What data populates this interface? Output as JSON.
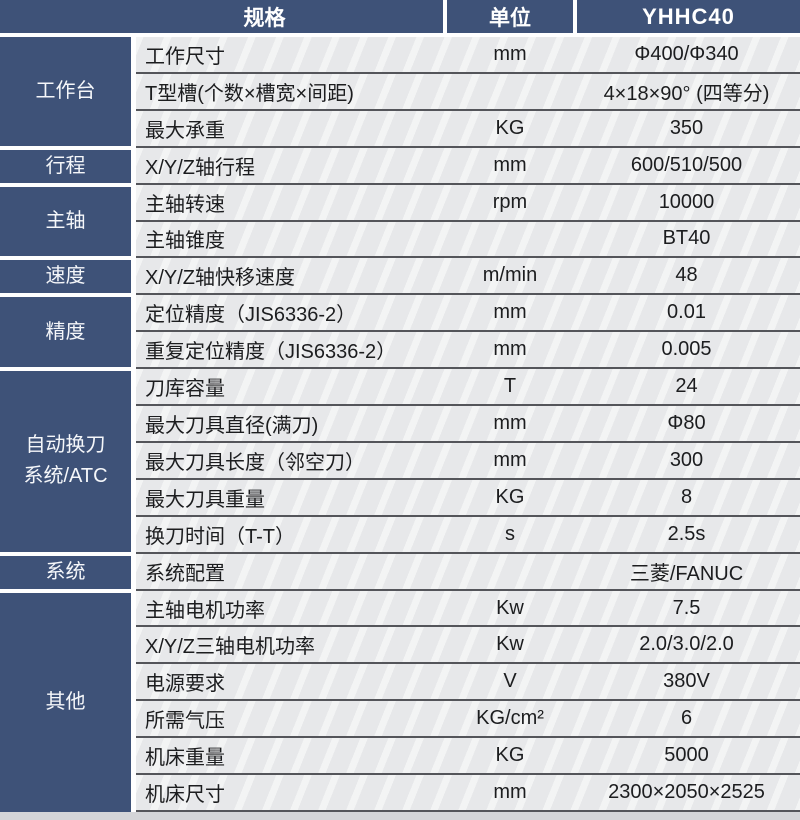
{
  "header": {
    "spec_label": "规格",
    "unit_label": "单位",
    "model": "YHHC40"
  },
  "colors": {
    "header_blue": "#3e5278",
    "row_background": "#e7e8ea",
    "divider": "#54555a",
    "header_text": "#ffffff",
    "body_text": "#1c1d1f"
  },
  "groups": [
    {
      "label": "工作台"
    },
    {
      "label": "行程"
    },
    {
      "label": "主轴"
    },
    {
      "label": "速度"
    },
    {
      "label": "精度"
    },
    {
      "label": "自动换刀\n系统/ATC"
    },
    {
      "label": "系统"
    },
    {
      "label": "其他"
    }
  ],
  "rows": [
    {
      "label": "工作尺寸",
      "unit": "mm",
      "value": "Φ400/Φ340"
    },
    {
      "label": "T型槽(个数×槽宽×间距)",
      "unit": "",
      "value": "4×18×90° (四等分)"
    },
    {
      "label": "最大承重",
      "unit": "KG",
      "value": "350"
    },
    {
      "label": "X/Y/Z轴行程",
      "unit": "mm",
      "value": "600/510/500"
    },
    {
      "label": "主轴转速",
      "unit": "rpm",
      "value": "10000"
    },
    {
      "label": "主轴锥度",
      "unit": "",
      "value": "BT40"
    },
    {
      "label": "X/Y/Z轴快移速度",
      "unit": "m/min",
      "value": "48"
    },
    {
      "label": "定位精度（JIS6336-2）",
      "unit": "mm",
      "value": "0.01"
    },
    {
      "label": "重复定位精度（JIS6336-2）",
      "unit": "mm",
      "value": "0.005"
    },
    {
      "label": "刀库容量",
      "unit": "T",
      "value": "24"
    },
    {
      "label": "最大刀具直径(满刀)",
      "unit": "mm",
      "value": "Φ80"
    },
    {
      "label": "最大刀具长度（邻空刀）",
      "unit": "mm",
      "value": "300"
    },
    {
      "label": "最大刀具重量",
      "unit": "KG",
      "value": "8"
    },
    {
      "label": "换刀时间（T-T）",
      "unit": "s",
      "value": "2.5s"
    },
    {
      "label": "系统配置",
      "unit": "",
      "value": "三菱/FANUC"
    },
    {
      "label": "主轴电机功率",
      "unit": "Kw",
      "value": "7.5"
    },
    {
      "label": "X/Y/Z三轴电机功率",
      "unit": "Kw",
      "value": "2.0/3.0/2.0"
    },
    {
      "label": "电源要求",
      "unit": "V",
      "value": "380V"
    },
    {
      "label": "所需气压",
      "unit": "KG/cm²",
      "value": "6"
    },
    {
      "label": "机床重量",
      "unit": "KG",
      "value": "5000"
    },
    {
      "label": "机床尺寸",
      "unit": "mm",
      "value": "2300×2050×2525"
    }
  ]
}
